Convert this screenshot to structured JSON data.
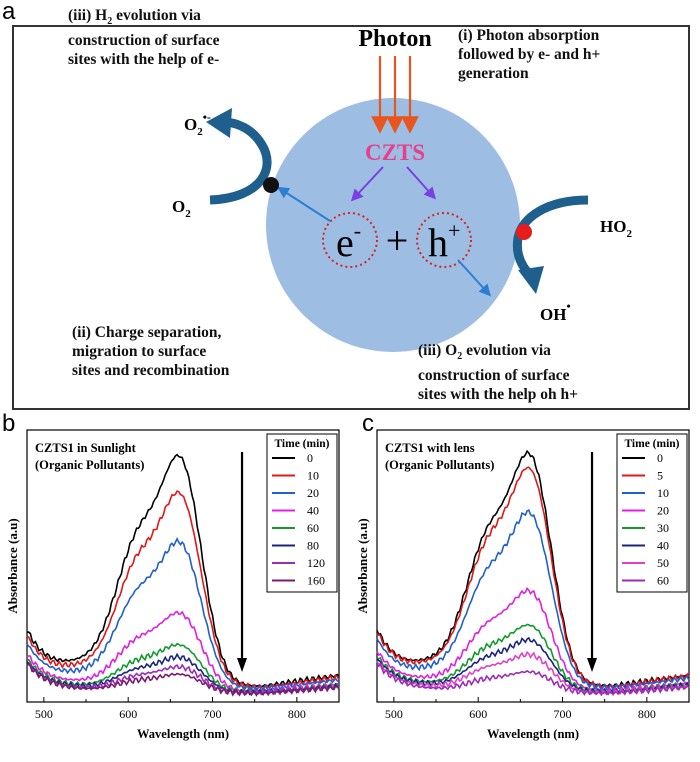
{
  "panels": {
    "a": "a",
    "b": "b",
    "c": "c"
  },
  "diagram": {
    "photon": "Photon",
    "czts": "CZTS",
    "electron": "e",
    "electron_sup": "-",
    "plus": "+",
    "hole": "h",
    "hole_sup": "+",
    "o2_left": "O",
    "o2_left_sub": "2",
    "o2_radical": "O",
    "o2_radical_sub": "2",
    "o2_radical_sup": "•-",
    "ho2": "HO",
    "ho2_sub": "2",
    "oh": "OH",
    "oh_sup": "•",
    "ann_h2_line1_pre": "(iii) H",
    "ann_h2_line1_sub": "2",
    "ann_h2_line1_post": " evolution via",
    "ann_h2_line2": "construction of surface",
    "ann_h2_line3": "sites with the help of e-",
    "ann_photon_line1": "(i) Photon absorption",
    "ann_photon_line2": "followed by e- and h+",
    "ann_photon_line3": "generation",
    "ann_charge_line1": "(ii) Charge separation,",
    "ann_charge_line2": "migration to surface",
    "ann_charge_line3": "sites and recombination",
    "ann_o2_line1_pre": "(iii) O",
    "ann_o2_line1_sub": "2",
    "ann_o2_line1_post": " evolution via",
    "ann_o2_line2": "construction of surface",
    "ann_o2_line3": "sites with the help oh h+",
    "colors": {
      "circle": "#9dbde3",
      "arrow_photon": "#e8551f",
      "czts": "#e83e8c",
      "purple_arrow": "#7b3fe4",
      "blue_arrow": "#2a7fd4",
      "curved_arrow": "#1f5f8e",
      "dot_left": "#111111",
      "dot_right": "#e81c1c",
      "dotted_circle": "#d62424"
    }
  },
  "chart_data": [
    {
      "type": "line",
      "title": "CZTS1 in Sunlight",
      "subtitle": "(Organic Pollutants)",
      "xlabel": "Wavelength (nm)",
      "ylabel": "Absorbance (a.u)",
      "xlim": [
        480,
        850
      ],
      "ylim": [
        0,
        1.0
      ],
      "xticks": [
        500,
        600,
        700,
        800
      ],
      "legend_title": "Time (min)",
      "legend_position": "top-right",
      "arrow": "down",
      "series": [
        {
          "name": "0",
          "color": "#000000",
          "peak": 0.97
        },
        {
          "name": "10",
          "color": "#e01818",
          "peak": 0.82
        },
        {
          "name": "20",
          "color": "#1f5fd0",
          "peak": 0.62
        },
        {
          "name": "40",
          "color": "#e020e0",
          "peak": 0.33
        },
        {
          "name": "60",
          "color": "#149a2c",
          "peak": 0.2
        },
        {
          "name": "80",
          "color": "#1a237e",
          "peak": 0.15
        },
        {
          "name": "120",
          "color": "#9c2bb5",
          "peak": 0.11
        },
        {
          "name": "160",
          "color": "#7a1b6e",
          "peak": 0.08
        }
      ]
    },
    {
      "type": "line",
      "title": "CZTS1 with lens",
      "subtitle": "(Organic Pollutants)",
      "xlabel": "Wavelength (nm)",
      "ylabel": "Absorbance (a.u)",
      "xlim": [
        480,
        850
      ],
      "ylim": [
        0,
        1.0
      ],
      "xticks": [
        500,
        600,
        700,
        800
      ],
      "legend_title": "Time (min)",
      "legend_position": "top-right",
      "arrow": "down",
      "series": [
        {
          "name": "0",
          "color": "#000000",
          "peak": 0.98
        },
        {
          "name": "5",
          "color": "#e01818",
          "peak": 0.92
        },
        {
          "name": "10",
          "color": "#1f5fd0",
          "peak": 0.74
        },
        {
          "name": "20",
          "color": "#e020e0",
          "peak": 0.42
        },
        {
          "name": "30",
          "color": "#149a2c",
          "peak": 0.28
        },
        {
          "name": "40",
          "color": "#1a237e",
          "peak": 0.22
        },
        {
          "name": "50",
          "color": "#e040c8",
          "peak": 0.16
        },
        {
          "name": "60",
          "color": "#9c2bb5",
          "peak": 0.09
        }
      ]
    }
  ]
}
